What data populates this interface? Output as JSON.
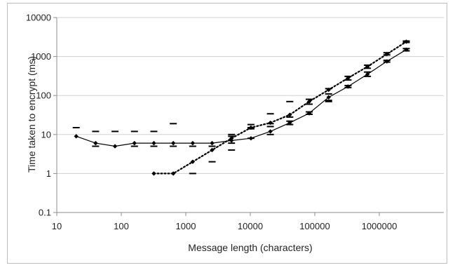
{
  "chart_data": {
    "type": "line",
    "xlabel": "Message length (characters)",
    "ylabel": "Time taken to encrypt (ms)",
    "x_scale": "log",
    "y_scale": "log",
    "xlim": [
      10,
      10000000
    ],
    "ylim": [
      0.1,
      10000
    ],
    "x_ticks": [
      "10",
      "100",
      "1000",
      "10000",
      "100000",
      "1000000"
    ],
    "y_ticks": [
      "0.1",
      "1",
      "10",
      "100",
      "1000",
      "10000"
    ],
    "grid": "horizontal",
    "legend": "none",
    "series": [
      {
        "style": "solid",
        "color": "#000000",
        "x": [
          20,
          40,
          80,
          160,
          320,
          640,
          1280,
          2560,
          5120,
          10240,
          20480,
          40960,
          81920,
          163840,
          327680,
          655360,
          1310720,
          2621440
        ],
        "y": [
          9,
          6,
          5,
          6,
          6,
          6,
          6,
          6,
          7,
          8,
          12,
          20,
          35,
          90,
          170,
          350,
          750,
          1500
        ],
        "err_low": [
          null,
          5,
          null,
          5,
          5,
          5,
          5,
          5,
          6,
          8,
          10,
          18,
          33,
          75,
          160,
          310,
          720,
          1400
        ],
        "err_high": [
          15,
          12,
          12,
          12,
          12,
          19,
          null,
          null,
          10,
          15,
          19,
          22,
          38,
          110,
          180,
          400,
          800,
          1600
        ]
      },
      {
        "style": "dotted",
        "color": "#000000",
        "x": [
          320,
          640,
          1280,
          2560,
          5120,
          10240,
          20480,
          40960,
          81920,
          163840,
          327680,
          655360,
          1310720,
          2621440
        ],
        "y": [
          1,
          1,
          2,
          4,
          8,
          15,
          20,
          32,
          70,
          140,
          280,
          550,
          1150,
          2400
        ],
        "err_low": [
          null,
          null,
          1,
          2,
          4,
          14,
          16,
          28,
          60,
          70,
          250,
          500,
          1100,
          2300
        ],
        "err_high": [
          null,
          null,
          null,
          null,
          9,
          18,
          34,
          70,
          80,
          150,
          310,
          600,
          1250,
          2500
        ]
      }
    ]
  }
}
